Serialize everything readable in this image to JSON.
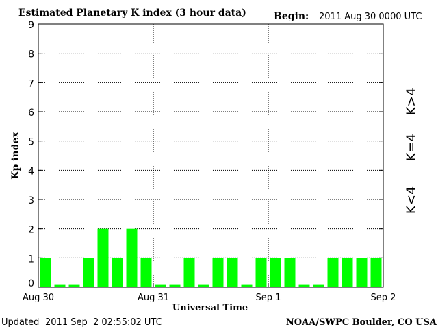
{
  "header": {
    "title": "Estimated Planetary K index (3 hour data)",
    "begin_label": "Begin:",
    "begin_value": "2011 Aug 30 0000 UTC"
  },
  "footer": {
    "updated_label": "Updated",
    "updated_value": "2011 Sep  2 02:55:02 UTC",
    "source": "NOAA/SWPC Boulder, CO USA"
  },
  "legend": {
    "high": "K>4",
    "equal": "K=4",
    "low": "K<4"
  },
  "colors": {
    "low": "#00ff00",
    "equal": "#ffcc00",
    "high": "#ff3300"
  },
  "chart_data": {
    "type": "bar",
    "title": "Estimated Planetary K index (3 hour data)",
    "xlabel": "Universal Time",
    "ylabel": "Kp index",
    "ylim": [
      0,
      9
    ],
    "yticks": [
      "0",
      "1",
      "2",
      "3",
      "4",
      "5",
      "6",
      "7",
      "8",
      "9"
    ],
    "x_tick_labels": [
      "Aug 30",
      "Aug 31",
      "Sep 1",
      "Sep 2"
    ],
    "grid": true,
    "values": [
      1,
      0,
      0,
      1,
      2,
      1,
      2,
      1,
      0,
      0,
      1,
      0,
      1,
      1,
      0,
      1,
      1,
      1,
      0,
      0,
      1,
      1,
      1,
      1
    ]
  }
}
